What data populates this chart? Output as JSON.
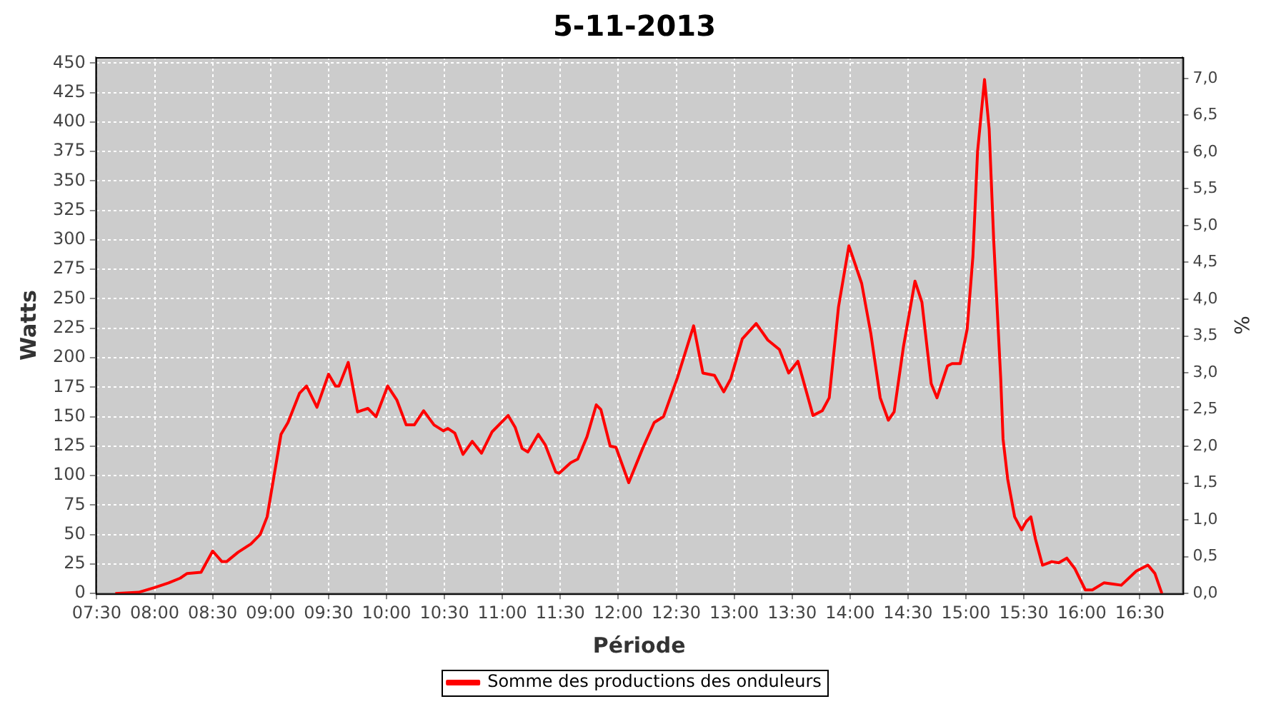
{
  "chart_data": {
    "type": "line",
    "title": "5-11-2013",
    "xlabel": "Période",
    "ylabel": "Watts",
    "y2label": "%",
    "xlim": [
      7.49,
      16.87
    ],
    "xticks": [
      {
        "value": 7.5,
        "label": "07:30"
      },
      {
        "value": 8,
        "label": "08:00"
      },
      {
        "value": 8.5,
        "label": "08:30"
      },
      {
        "value": 9,
        "label": "09:00"
      },
      {
        "value": 9.5,
        "label": "09:30"
      },
      {
        "value": 10,
        "label": "10:00"
      },
      {
        "value": 10.5,
        "label": "10:30"
      },
      {
        "value": 11,
        "label": "11:00"
      },
      {
        "value": 11.5,
        "label": "11:30"
      },
      {
        "value": 12,
        "label": "12:00"
      },
      {
        "value": 12.5,
        "label": "12:30"
      },
      {
        "value": 13,
        "label": "13:00"
      },
      {
        "value": 13.5,
        "label": "13:30"
      },
      {
        "value": 14,
        "label": "14:00"
      },
      {
        "value": 14.5,
        "label": "14:30"
      },
      {
        "value": 15,
        "label": "15:00"
      },
      {
        "value": 15.5,
        "label": "15:30"
      },
      {
        "value": 16,
        "label": "16:00"
      },
      {
        "value": 16.5,
        "label": "16:30"
      }
    ],
    "ylim": [
      0,
      455
    ],
    "yticks": [
      0,
      25,
      50,
      75,
      100,
      125,
      150,
      175,
      200,
      225,
      250,
      275,
      300,
      325,
      350,
      375,
      400,
      425,
      450
    ],
    "y2lim": [
      0,
      7.29
    ],
    "y2ticks": [
      {
        "value": 0,
        "label": "0,0"
      },
      {
        "value": 0.5,
        "label": "0,5"
      },
      {
        "value": 1,
        "label": "1,0"
      },
      {
        "value": 1.5,
        "label": "1,5"
      },
      {
        "value": 2,
        "label": "2,0"
      },
      {
        "value": 2.5,
        "label": "2,5"
      },
      {
        "value": 3,
        "label": "3,0"
      },
      {
        "value": 3.5,
        "label": "3,5"
      },
      {
        "value": 4,
        "label": "4,0"
      },
      {
        "value": 4.5,
        "label": "4,5"
      },
      {
        "value": 5,
        "label": "5,0"
      },
      {
        "value": 5.5,
        "label": "5,5"
      },
      {
        "value": 6,
        "label": "6,0"
      },
      {
        "value": 6.5,
        "label": "6,5"
      },
      {
        "value": 7,
        "label": "7,0"
      }
    ],
    "grid": true,
    "legend": "bottom",
    "marker": "none",
    "line_style": "solid",
    "series": [
      {
        "name": "Somme des productions des onduleurs",
        "color": "#ff0000",
        "x": [
          7.66,
          7.86,
          8.0,
          8.12,
          8.22,
          8.28,
          8.4,
          8.5,
          8.58,
          8.62,
          8.72,
          8.83,
          8.91,
          8.97,
          9.03,
          9.09,
          9.15,
          9.25,
          9.31,
          9.4,
          9.5,
          9.56,
          9.59,
          9.67,
          9.75,
          9.84,
          9.91,
          10.01,
          10.09,
          10.17,
          10.24,
          10.32,
          10.41,
          10.49,
          10.53,
          10.59,
          10.66,
          10.74,
          10.82,
          10.91,
          11.05,
          11.11,
          11.17,
          11.22,
          11.31,
          11.37,
          11.46,
          11.49,
          11.59,
          11.65,
          11.73,
          11.81,
          11.85,
          11.93,
          11.98,
          12.09,
          12.21,
          12.31,
          12.39,
          12.51,
          12.65,
          12.73,
          12.83,
          12.91,
          12.97,
          13.07,
          13.19,
          13.29,
          13.39,
          13.47,
          13.55,
          13.68,
          13.76,
          13.82,
          13.9,
          13.99,
          14.1,
          14.18,
          14.26,
          14.33,
          14.38,
          14.46,
          14.56,
          14.62,
          14.7,
          14.75,
          14.84,
          14.88,
          14.95,
          15.01,
          15.06,
          15.1,
          15.16,
          15.2,
          15.24,
          15.3,
          15.32,
          15.36,
          15.42,
          15.48,
          15.52,
          15.56,
          15.6,
          15.66,
          15.74,
          15.8,
          15.87,
          15.94,
          16.03,
          16.09,
          16.19,
          16.27,
          16.34,
          16.47,
          16.57,
          16.63,
          16.69
        ],
        "values": [
          0,
          1,
          5,
          9,
          13,
          17,
          18,
          36,
          27,
          27,
          35,
          42,
          50,
          65,
          100,
          135,
          145,
          170,
          176,
          158,
          186,
          176,
          176,
          196,
          154,
          157,
          150,
          176,
          164,
          143,
          143,
          155,
          143,
          138,
          140,
          136,
          118,
          129,
          119,
          137,
          151,
          141,
          123,
          120,
          135,
          126,
          103,
          102,
          111,
          114,
          133,
          160,
          156,
          125,
          124,
          94,
          123,
          145,
          150,
          183,
          227,
          187,
          185,
          171,
          182,
          216,
          229,
          215,
          207,
          187,
          197,
          151,
          155,
          166,
          243,
          295,
          263,
          220,
          166,
          147,
          154,
          209,
          265,
          247,
          178,
          166,
          193,
          195,
          195,
          224,
          286,
          375,
          436,
          394,
          298,
          182,
          131,
          97,
          65,
          54,
          61,
          65,
          46,
          24,
          27,
          26,
          30,
          21,
          3,
          3,
          9,
          8,
          7,
          19,
          24,
          17,
          0
        ]
      }
    ]
  }
}
